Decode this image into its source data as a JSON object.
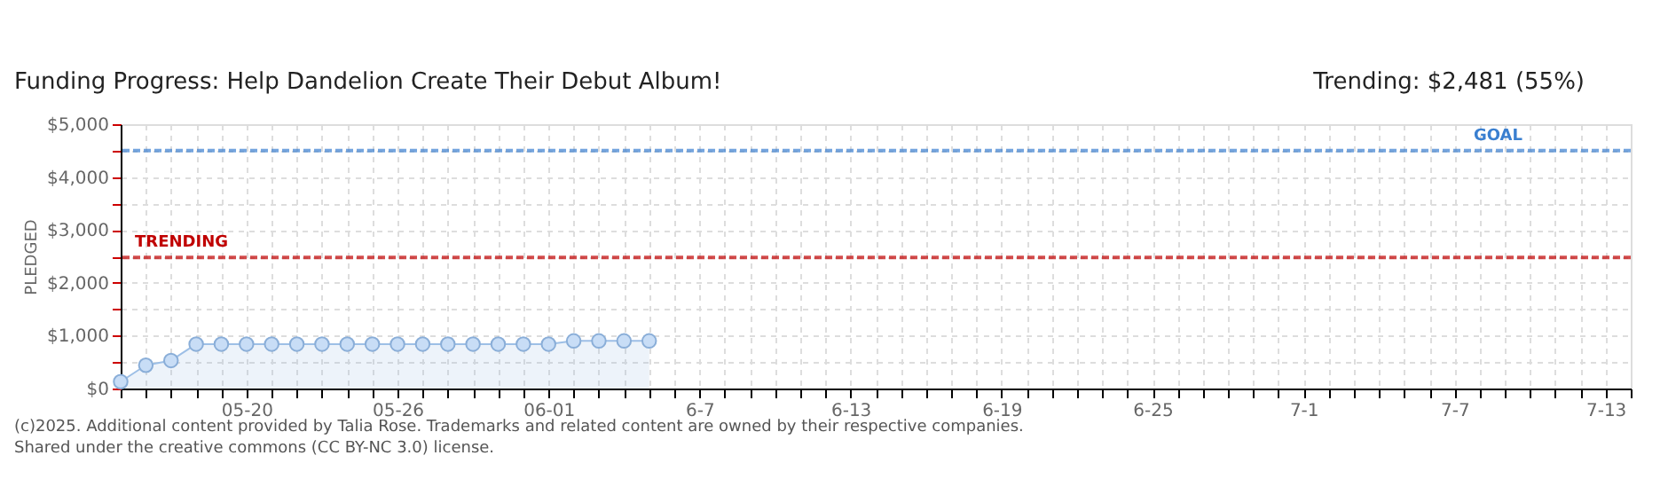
{
  "chart_data": {
    "type": "area",
    "title": "Funding Progress: Help Dandelion Create Their Debut Album!",
    "subtitle": "Trending: $2,481 (55%)",
    "ylabel": "PLEDGED",
    "x": [
      "2025-05-15",
      "2025-05-16",
      "2025-05-17",
      "2025-05-18",
      "2025-05-19",
      "2025-05-20",
      "2025-05-21",
      "2025-05-22",
      "2025-05-23",
      "2025-05-24",
      "2025-05-25",
      "2025-05-26",
      "2025-05-27",
      "2025-05-28",
      "2025-05-29",
      "2025-05-30",
      "2025-05-31",
      "2025-06-01",
      "2025-06-02",
      "2025-06-03",
      "2025-06-04",
      "2025-06-05"
    ],
    "series": [
      {
        "color": "#9dbfe6",
        "values": [
          130,
          440,
          530,
          840,
          840,
          840,
          840,
          840,
          840,
          840,
          840,
          840,
          840,
          840,
          840,
          840,
          840,
          840,
          900,
          900,
          900,
          900
        ]
      }
    ],
    "marker": "circle",
    "legend": false,
    "grid": true,
    "xlim": [
      "2025-05-15",
      "2025-07-14"
    ],
    "xticks": [
      {
        "value": "2025-05-15",
        "label": null
      },
      {
        "value": "2025-05-16",
        "label": null
      },
      {
        "value": "2025-05-17",
        "label": null
      },
      {
        "value": "2025-05-18",
        "label": null
      },
      {
        "value": "2025-05-19",
        "label": null
      },
      {
        "value": "2025-05-20",
        "label": "05-20"
      },
      {
        "value": "2025-05-21",
        "label": null
      },
      {
        "value": "2025-05-22",
        "label": null
      },
      {
        "value": "2025-05-23",
        "label": null
      },
      {
        "value": "2025-05-24",
        "label": null
      },
      {
        "value": "2025-05-25",
        "label": null
      },
      {
        "value": "2025-05-26",
        "label": "05-26"
      },
      {
        "value": "2025-05-27",
        "label": null
      },
      {
        "value": "2025-05-28",
        "label": null
      },
      {
        "value": "2025-05-29",
        "label": null
      },
      {
        "value": "2025-05-30",
        "label": null
      },
      {
        "value": "2025-05-31",
        "label": null
      },
      {
        "value": "2025-06-01",
        "label": "06-01"
      },
      {
        "value": "2025-06-02",
        "label": null
      },
      {
        "value": "2025-06-03",
        "label": null
      },
      {
        "value": "2025-06-04",
        "label": null
      },
      {
        "value": "2025-06-05",
        "label": null
      },
      {
        "value": "2025-06-06",
        "label": null
      },
      {
        "value": "2025-06-07",
        "label": "6-7"
      },
      {
        "value": "2025-06-08",
        "label": null
      },
      {
        "value": "2025-06-09",
        "label": null
      },
      {
        "value": "2025-06-10",
        "label": null
      },
      {
        "value": "2025-06-11",
        "label": null
      },
      {
        "value": "2025-06-12",
        "label": null
      },
      {
        "value": "2025-06-13",
        "label": "6-13"
      },
      {
        "value": "2025-06-14",
        "label": null
      },
      {
        "value": "2025-06-15",
        "label": null
      },
      {
        "value": "2025-06-16",
        "label": null
      },
      {
        "value": "2025-06-17",
        "label": null
      },
      {
        "value": "2025-06-18",
        "label": null
      },
      {
        "value": "2025-06-19",
        "label": "6-19"
      },
      {
        "value": "2025-06-20",
        "label": null
      },
      {
        "value": "2025-06-21",
        "label": null
      },
      {
        "value": "2025-06-22",
        "label": null
      },
      {
        "value": "2025-06-23",
        "label": null
      },
      {
        "value": "2025-06-24",
        "label": null
      },
      {
        "value": "2025-06-25",
        "label": "6-25"
      },
      {
        "value": "2025-06-26",
        "label": null
      },
      {
        "value": "2025-06-27",
        "label": null
      },
      {
        "value": "2025-06-28",
        "label": null
      },
      {
        "value": "2025-06-29",
        "label": null
      },
      {
        "value": "2025-06-30",
        "label": null
      },
      {
        "value": "2025-07-01",
        "label": "7-1"
      },
      {
        "value": "2025-07-02",
        "label": null
      },
      {
        "value": "2025-07-03",
        "label": null
      },
      {
        "value": "2025-07-04",
        "label": null
      },
      {
        "value": "2025-07-05",
        "label": null
      },
      {
        "value": "2025-07-06",
        "label": null
      },
      {
        "value": "2025-07-07",
        "label": "7-7"
      },
      {
        "value": "2025-07-08",
        "label": null
      },
      {
        "value": "2025-07-09",
        "label": null
      },
      {
        "value": "2025-07-10",
        "label": null
      },
      {
        "value": "2025-07-11",
        "label": null
      },
      {
        "value": "2025-07-12",
        "label": null
      },
      {
        "value": "2025-07-13",
        "label": "7-13"
      },
      {
        "value": "2025-07-14",
        "label": null
      }
    ],
    "ylim": [
      0,
      5000
    ],
    "yticks": [
      {
        "value": 0,
        "label": "$0"
      },
      {
        "value": 500,
        "label": null
      },
      {
        "value": 1000,
        "label": "$1,000"
      },
      {
        "value": 1500,
        "label": null
      },
      {
        "value": 2000,
        "label": "$2,000"
      },
      {
        "value": 2500,
        "label": null
      },
      {
        "value": 3000,
        "label": "$3,000"
      },
      {
        "value": 3500,
        "label": null
      },
      {
        "value": 4000,
        "label": "$4,000"
      },
      {
        "value": 4500,
        "label": null
      },
      {
        "value": 5000,
        "label": "$5,000"
      }
    ],
    "ref_lines": [
      {
        "axis": "y",
        "value": 4500,
        "label": "GOAL",
        "color": "#3a7fd0",
        "line_style": "dashed"
      },
      {
        "axis": "y",
        "value": 2481,
        "label": "TRENDING",
        "color": "#c00000",
        "line_style": "dashed"
      }
    ],
    "annotations": [
      "(c)2025. Additional content provided by Talia Rose. Trademarks and related content are owned by their respective companies.",
      "Shared under the creative commons (CC BY-NC 3.0) license."
    ]
  }
}
